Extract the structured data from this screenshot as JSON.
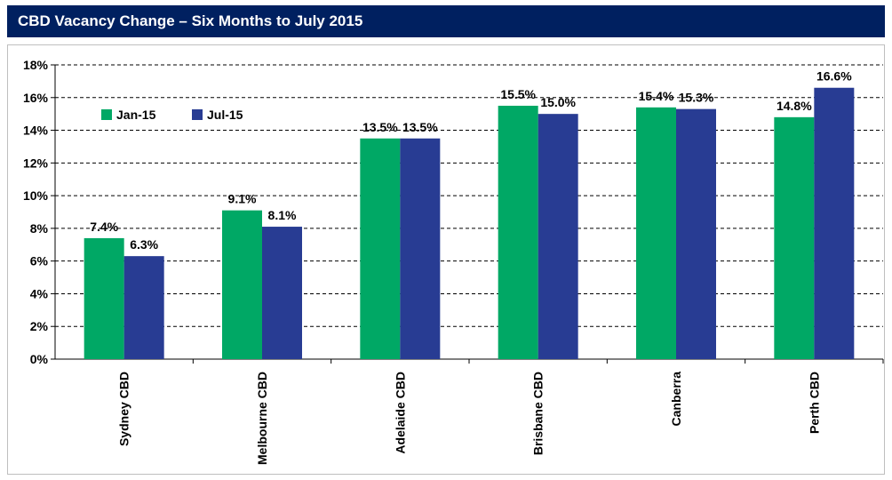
{
  "title": "CBD Vacancy Change – Six Months to July 2015",
  "colors": {
    "header_bg": "#002060",
    "series1": "#00A865",
    "series2": "#283C93"
  },
  "chart_data": {
    "type": "bar",
    "title": "CBD Vacancy Change – Six Months to July 2015",
    "categories": [
      "Sydney CBD",
      "Melbourne CBD",
      "Adelaide CBD",
      "Brisbane CBD",
      "Canberra",
      "Perth CBD"
    ],
    "series": [
      {
        "name": "Jan-15",
        "color": "#00A865",
        "values": [
          7.4,
          9.1,
          13.5,
          15.5,
          15.4,
          14.8
        ],
        "labels": [
          "7.4%",
          "9.1%",
          "13.5%",
          "15.5%",
          "15.4%",
          "14.8%"
        ]
      },
      {
        "name": "Jul-15",
        "color": "#283C93",
        "values": [
          6.3,
          8.1,
          13.5,
          15.0,
          15.3,
          16.6
        ],
        "labels": [
          "6.3%",
          "8.1%",
          "13.5%",
          "15.0%",
          "15.3%",
          "16.6%"
        ]
      }
    ],
    "ylim": [
      0,
      18
    ],
    "yticks": [
      "0%",
      "2%",
      "4%",
      "6%",
      "8%",
      "10%",
      "12%",
      "14%",
      "16%",
      "18%"
    ],
    "ytick_values": [
      0,
      2,
      4,
      6,
      8,
      10,
      12,
      14,
      16,
      18
    ],
    "grid": true,
    "legend_position": "top-left"
  }
}
